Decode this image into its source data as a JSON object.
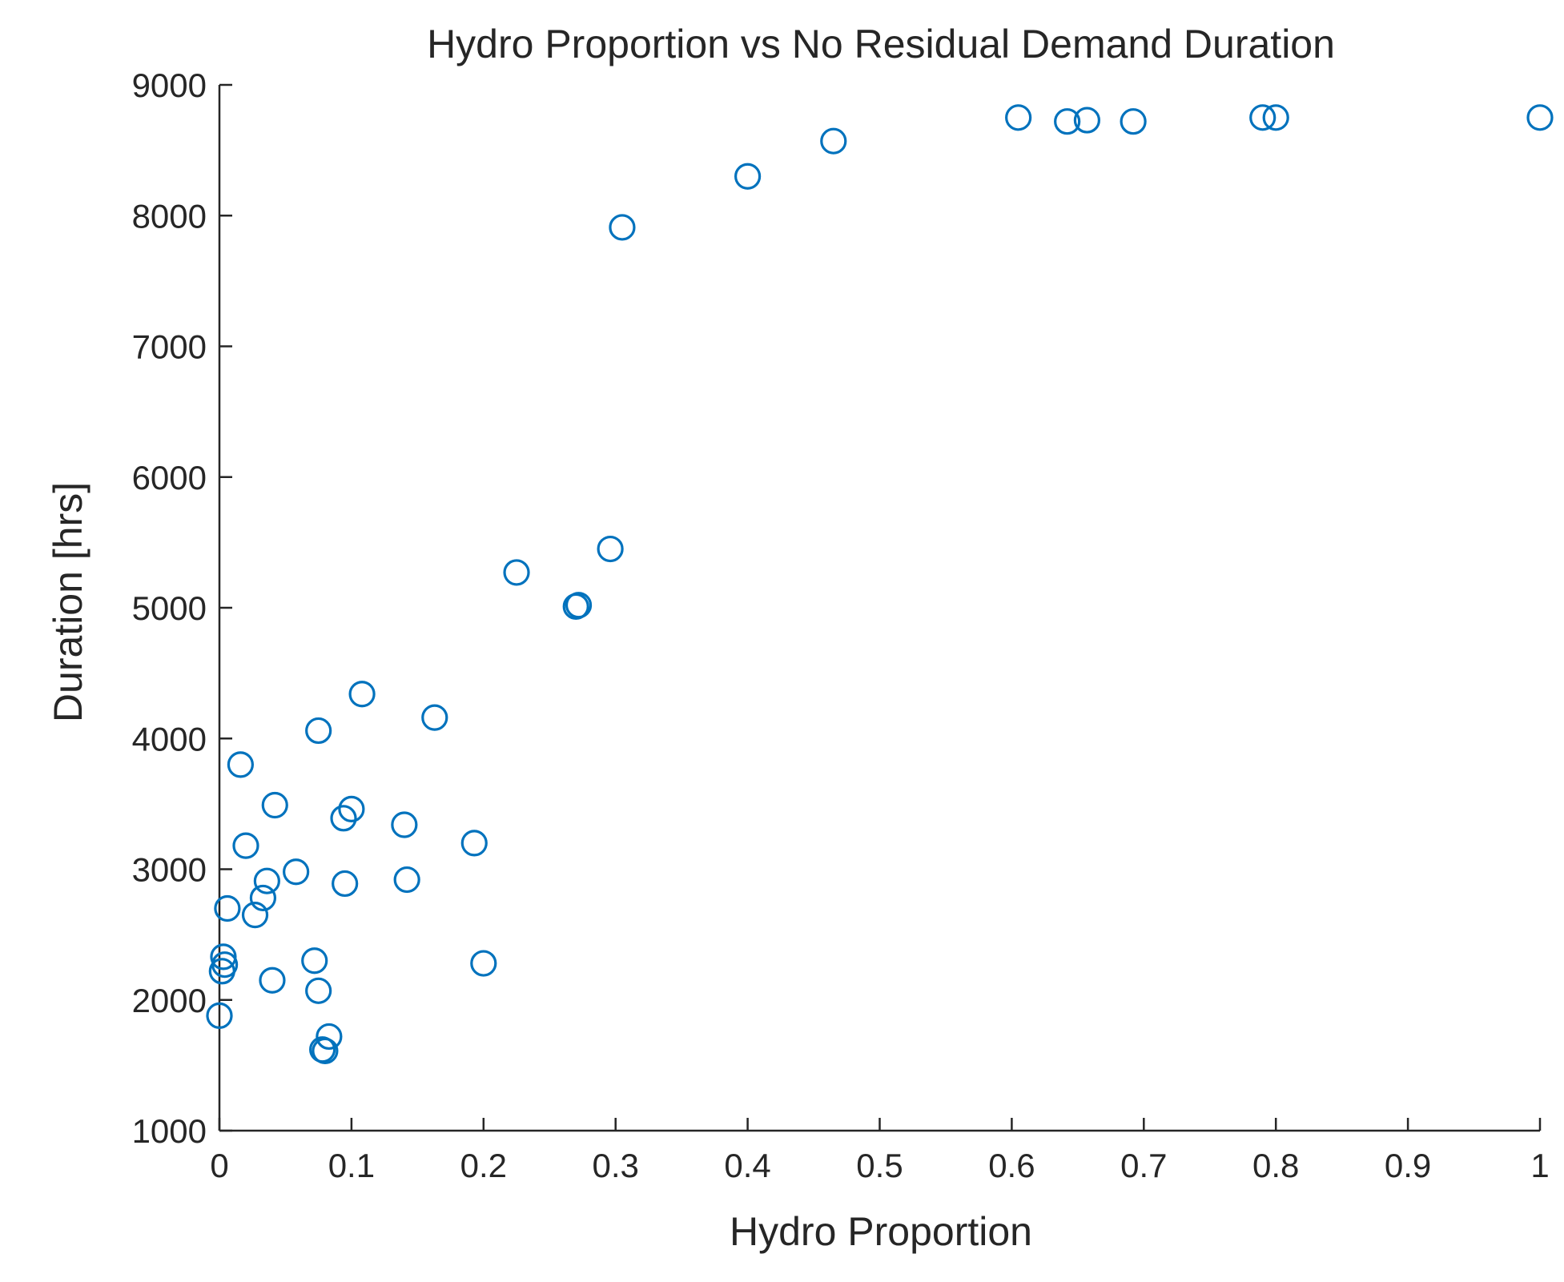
{
  "chart_data": {
    "type": "scatter",
    "title": "Hydro Proportion vs No Residual Demand Duration",
    "xlabel": "Hydro Proportion",
    "ylabel": "Duration [hrs]",
    "xlim": [
      0,
      1
    ],
    "ylim": [
      1000,
      9000
    ],
    "xticks": [
      0,
      0.1,
      0.2,
      0.3,
      0.4,
      0.5,
      0.6,
      0.7,
      0.8,
      0.9,
      1
    ],
    "xtick_labels": [
      "0",
      "0.1",
      "0.2",
      "0.3",
      "0.4",
      "0.5",
      "0.6",
      "0.7",
      "0.8",
      "0.9",
      "1"
    ],
    "yticks": [
      1000,
      2000,
      3000,
      4000,
      5000,
      6000,
      7000,
      8000,
      9000
    ],
    "ytick_labels": [
      "1000",
      "2000",
      "3000",
      "4000",
      "5000",
      "6000",
      "7000",
      "8000",
      "9000"
    ],
    "grid": false,
    "marker": "circle-open",
    "color": "#0072BD",
    "series": [
      {
        "name": "data",
        "x": [
          0.0,
          0.002,
          0.004,
          0.003,
          0.006,
          0.016,
          0.02,
          0.027,
          0.033,
          0.036,
          0.04,
          0.042,
          0.058,
          0.072,
          0.075,
          0.075,
          0.078,
          0.08,
          0.083,
          0.094,
          0.095,
          0.1,
          0.108,
          0.14,
          0.142,
          0.163,
          0.193,
          0.2,
          0.225,
          0.27,
          0.272,
          0.296,
          0.305,
          0.4,
          0.465,
          0.605,
          0.642,
          0.657,
          0.692,
          0.79,
          0.8,
          1.0
        ],
        "y": [
          1880,
          2220,
          2270,
          2330,
          2700,
          3800,
          3180,
          2650,
          2780,
          2910,
          2150,
          3490,
          2980,
          2300,
          4060,
          2070,
          1620,
          1610,
          1720,
          3390,
          2890,
          3460,
          4340,
          3340,
          2920,
          4160,
          3200,
          2280,
          5270,
          5010,
          5020,
          5450,
          7910,
          8300,
          8570,
          8750,
          8720,
          8730,
          8720,
          8750,
          8750,
          8750
        ]
      }
    ]
  }
}
